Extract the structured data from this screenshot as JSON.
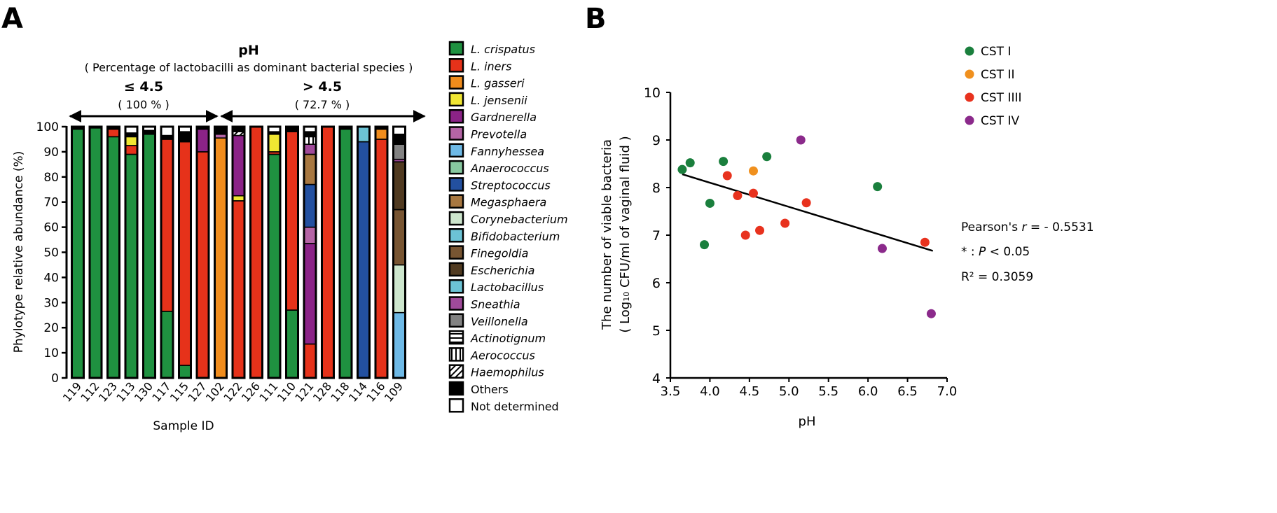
{
  "panel_labels": {
    "a": "A",
    "b": "B"
  },
  "chart_data": [
    {
      "type": "bar",
      "stacked": true,
      "title": "pH",
      "subtitle": "( Percentage of lactobacilli as dominant bacterial species )",
      "groups": [
        {
          "label": "≤ 4.5",
          "percent": "( 100 % )"
        },
        {
          "label": "> 4.5",
          "percent": "( 72.7 % )"
        }
      ],
      "xlabel": "Sample ID",
      "ylabel": "Phylotype relative abundance (%)",
      "ylim": [
        0,
        100
      ],
      "yticks": [
        "0",
        "10",
        "20",
        "30",
        "40",
        "50",
        "60",
        "70",
        "80",
        "90",
        "100"
      ],
      "categories": [
        "119",
        "112",
        "123",
        "113",
        "130",
        "117",
        "115",
        "127",
        "102",
        "122",
        "126",
        "111",
        "110",
        "121",
        "128",
        "118",
        "114",
        "116",
        "109"
      ],
      "group_sizes": [
        8,
        11
      ],
      "legend": [
        {
          "key": "crispatus",
          "name": "L. crispatus",
          "color": "#1f9140",
          "italic": true
        },
        {
          "key": "iners",
          "name": "L. iners",
          "color": "#e6321a",
          "italic": true
        },
        {
          "key": "gasseri",
          "name": "L. gasseri",
          "color": "#f08c1c",
          "italic": true
        },
        {
          "key": "jensenii",
          "name": "L. jensenii",
          "color": "#f0e632",
          "italic": true
        },
        {
          "key": "gardnerella",
          "name": "Gardnerella",
          "color": "#8b2387",
          "italic": true
        },
        {
          "key": "prevotella",
          "name": "Prevotella",
          "color": "#b464a5",
          "italic": true
        },
        {
          "key": "fannyhessea",
          "name": "Fannyhessea",
          "color": "#6eb9e6",
          "italic": true
        },
        {
          "key": "anaerococcus",
          "name": "Anaerococcus",
          "color": "#87c8a0",
          "italic": true
        },
        {
          "key": "streptococcus",
          "name": "Streptococcus",
          "color": "#2350a0",
          "italic": true
        },
        {
          "key": "megasphaera",
          "name": "Megasphaera",
          "color": "#a87841",
          "italic": true
        },
        {
          "key": "corynebacterium",
          "name": "Corynebacterium",
          "color": "#cde6cd",
          "italic": true
        },
        {
          "key": "bifidobacterium",
          "name": "Bifidobacterium",
          "color": "#6cc3d5",
          "italic": true
        },
        {
          "key": "finegoldia",
          "name": "Finegoldia",
          "color": "#785532",
          "italic": true
        },
        {
          "key": "escherichia",
          "name": "Escherichia",
          "color": "#503a20",
          "italic": true
        },
        {
          "key": "lactobacillus",
          "name": "Lactobacillus",
          "color": "#6cc3d5",
          "italic": true
        },
        {
          "key": "sneathia",
          "name": "Sneathia",
          "color": "#a04a9a",
          "italic": true
        },
        {
          "key": "veillonella",
          "name": "Veillonella",
          "color": "#828282",
          "italic": true
        },
        {
          "key": "actinotignum",
          "name": "Actinotignum",
          "color": "pattern-horizontal",
          "italic": true
        },
        {
          "key": "aerococcus",
          "name": "Aerococcus",
          "color": "pattern-vertical",
          "italic": true
        },
        {
          "key": "haemophilus",
          "name": "Haemophilus",
          "color": "pattern-diagonal",
          "italic": true
        },
        {
          "key": "others",
          "name": "Others",
          "color": "#000000",
          "italic": false
        },
        {
          "key": "notdetermined",
          "name": "Not determined",
          "color": "#ffffff",
          "italic": false
        }
      ],
      "stacks": [
        {
          "crispatus": 99,
          "others": 1
        },
        {
          "crispatus": 99.5,
          "others": 0.5
        },
        {
          "crispatus": 96,
          "iners": 3,
          "others": 1
        },
        {
          "crispatus": 89,
          "iners": 3.5,
          "jensenii": 3.5,
          "others": 1.5,
          "notdetermined": 2.5
        },
        {
          "crispatus": 97,
          "others": 1.5,
          "notdetermined": 1.5
        },
        {
          "crispatus": 26.5,
          "iners": 68.5,
          "notdetermined": 3.5,
          "others": 1.5
        },
        {
          "crispatus": 5,
          "iners": 89,
          "notdetermined": 2,
          "others": 4
        },
        {
          "iners": 90,
          "gardnerella": 9,
          "others": 1
        },
        {
          "gasseri": 95.5,
          "prevotella": 1.5,
          "others": 3
        },
        {
          "iners": 70.5,
          "jensenii": 2,
          "gardnerella": 24,
          "others": 2,
          "haemophilus": 1.5
        },
        {
          "iners": 100
        },
        {
          "crispatus": 89,
          "iners": 1,
          "jensenii": 7,
          "others": 1,
          "notdetermined": 2
        },
        {
          "crispatus": 27,
          "iners": 71,
          "others": 2
        },
        {
          "iners": 13.5,
          "gardnerella": 40,
          "prevotella": 6.5,
          "notdetermined": 2,
          "others": 2,
          "streptococcus": 17,
          "megasphaera": 12,
          "sneathia": 4,
          "aerococcus": 3
        },
        {
          "iners": 100
        },
        {
          "crispatus": 99,
          "others": 1
        },
        {
          "lactobacillus": 6,
          "streptococcus": 94
        },
        {
          "iners": 95,
          "gasseri": 4,
          "others": 1
        },
        {
          "sneathia": 1,
          "corynebacterium": 19,
          "notdetermined": 3,
          "others": 4,
          "fannyhessea": 26,
          "finegoldia": 22,
          "escherichia": 19,
          "veillonella": 6
        }
      ]
    },
    {
      "type": "scatter",
      "xlabel": "pH",
      "ylabel": "The number of viable bacteria",
      "ylabel2_prefix": "( Log",
      "ylabel2_sub": "10",
      "ylabel2_suffix": " CFU/ml of vaginal fluid )",
      "xlim": [
        3.5,
        7.0
      ],
      "ylim": [
        4,
        10
      ],
      "xticks": [
        "3.5",
        "4.0",
        "4.5",
        "5.0",
        "5.5",
        "6.0",
        "6.5",
        "7.0"
      ],
      "yticks": [
        "4",
        "5",
        "6",
        "7",
        "8",
        "9",
        "10"
      ],
      "legend_position": "top-right",
      "series": [
        {
          "name": "CST I",
          "color": "#1a7f3d",
          "points": [
            [
              3.65,
              8.38
            ],
            [
              3.75,
              8.52
            ],
            [
              4.0,
              7.67
            ],
            [
              3.93,
              6.8
            ],
            [
              4.17,
              8.55
            ],
            [
              4.72,
              8.65
            ],
            [
              6.12,
              8.02
            ]
          ]
        },
        {
          "name": "CST II",
          "color": "#f0901e",
          "points": [
            [
              4.55,
              8.35
            ]
          ]
        },
        {
          "name": "CST IIII",
          "color": "#e8321e",
          "points": [
            [
              4.22,
              8.25
            ],
            [
              4.35,
              7.83
            ],
            [
              4.55,
              7.88
            ],
            [
              4.45,
              7.0
            ],
            [
              4.63,
              7.1
            ],
            [
              4.95,
              7.25
            ],
            [
              5.22,
              7.68
            ],
            [
              6.72,
              6.85
            ]
          ]
        },
        {
          "name": "CST IV",
          "color": "#8b2a8b",
          "points": [
            [
              5.15,
              9.0
            ],
            [
              6.18,
              6.72
            ],
            [
              6.8,
              5.35
            ]
          ]
        }
      ],
      "trendline": {
        "from": [
          3.65,
          8.28
        ],
        "to": [
          6.82,
          6.67
        ]
      },
      "stats": {
        "pearson_prefix": "Pearson's ",
        "pearson_r": "r",
        "pearson_value": " = - 0.5531",
        "p_prefix": "* : ",
        "p_italic": "P",
        "p_suffix": " < 0.05",
        "r2": "R² = 0.3059"
      }
    }
  ]
}
